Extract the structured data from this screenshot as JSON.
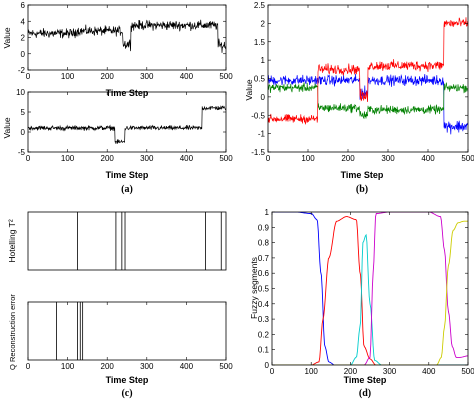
{
  "chart_data": [
    {
      "panel": "(a)",
      "type": "line",
      "xlabel": "Time Step",
      "ylabel": "Value",
      "xlim": [
        0,
        500
      ],
      "ylim": [
        -2,
        6
      ],
      "xticks": [
        0,
        100,
        200,
        300,
        400,
        500
      ],
      "yticks": [
        -2,
        0,
        2,
        4,
        6
      ],
      "grid": false,
      "series": [
        {
          "color": "#000000",
          "segments": [
            {
              "from": 0,
              "to": 120,
              "mean": 2.5,
              "noise": 0.5
            },
            {
              "from": 120,
              "to": 240,
              "mean": 2.8,
              "noise": 0.5
            },
            {
              "from": 240,
              "to": 260,
              "mean": 1.2,
              "noise": 0.6
            },
            {
              "from": 260,
              "to": 480,
              "mean": 3.5,
              "noise": 0.5
            },
            {
              "from": 480,
              "to": 500,
              "mean": 1.0,
              "noise": 0.6
            }
          ]
        }
      ]
    },
    {
      "panel": "(a)",
      "type": "line",
      "xlabel": "Time Step",
      "ylabel": "Value",
      "xlim": [
        0,
        500
      ],
      "ylim": [
        -5,
        10
      ],
      "xticks": [
        0,
        100,
        200,
        300,
        400,
        500
      ],
      "yticks": [
        -5,
        0,
        5,
        10
      ],
      "grid": false,
      "series": [
        {
          "color": "#000000",
          "segments": [
            {
              "from": 0,
              "to": 220,
              "mean": 1.0,
              "noise": 0.5
            },
            {
              "from": 220,
              "to": 245,
              "mean": -2.5,
              "noise": 0.5
            },
            {
              "from": 245,
              "to": 440,
              "mean": 1.0,
              "noise": 0.5
            },
            {
              "from": 440,
              "to": 500,
              "mean": 6.0,
              "noise": 0.5
            }
          ]
        }
      ]
    },
    {
      "panel": "(b)",
      "type": "line",
      "xlabel": "Time Step",
      "ylabel": "Value",
      "xlim": [
        0,
        500
      ],
      "ylim": [
        -1.5,
        2.5
      ],
      "xticks": [
        0,
        100,
        200,
        300,
        400,
        500
      ],
      "yticks": [
        -1.5,
        -1,
        -0.5,
        0,
        0.5,
        1,
        1.5,
        2,
        2.5
      ],
      "grid": false,
      "series": [
        {
          "color": "#0000ff",
          "segments": [
            {
              "from": 0,
              "to": 125,
              "mean": 0.45,
              "noise": 0.12
            },
            {
              "from": 125,
              "to": 230,
              "mean": 0.45,
              "noise": 0.12
            },
            {
              "from": 230,
              "to": 250,
              "mean": 0.1,
              "noise": 0.15
            },
            {
              "from": 250,
              "to": 440,
              "mean": 0.45,
              "noise": 0.12
            },
            {
              "from": 440,
              "to": 500,
              "mean": -0.8,
              "noise": 0.15
            }
          ]
        },
        {
          "color": "#008000",
          "segments": [
            {
              "from": 0,
              "to": 125,
              "mean": 0.25,
              "noise": 0.1
            },
            {
              "from": 125,
              "to": 230,
              "mean": -0.3,
              "noise": 0.1
            },
            {
              "from": 230,
              "to": 250,
              "mean": -0.5,
              "noise": 0.12
            },
            {
              "from": 250,
              "to": 440,
              "mean": -0.35,
              "noise": 0.1
            },
            {
              "from": 440,
              "to": 500,
              "mean": 0.25,
              "noise": 0.1
            }
          ]
        },
        {
          "color": "#ff0000",
          "segments": [
            {
              "from": 0,
              "to": 125,
              "mean": -0.6,
              "noise": 0.1
            },
            {
              "from": 125,
              "to": 230,
              "mean": 0.75,
              "noise": 0.12
            },
            {
              "from": 230,
              "to": 250,
              "mean": 0.0,
              "noise": 0.15
            },
            {
              "from": 250,
              "to": 440,
              "mean": 0.85,
              "noise": 0.12
            },
            {
              "from": 440,
              "to": 500,
              "mean": 2.0,
              "noise": 0.12
            }
          ]
        }
      ]
    },
    {
      "panel": "(c)",
      "type": "line",
      "xlabel": "",
      "ylabel": "Hotelling T²",
      "xlim": [
        0,
        500
      ],
      "ticks_visible": false,
      "event_lines": [
        125,
        222,
        237,
        245,
        448,
        488
      ]
    },
    {
      "panel": "(c)",
      "type": "line",
      "xlabel": "Time Step",
      "ylabel": "Q Reconstruction error",
      "xlim": [
        0,
        500
      ],
      "xticks": [
        0,
        100,
        200,
        300,
        400,
        500
      ],
      "event_lines": [
        72,
        125,
        132,
        138
      ]
    },
    {
      "panel": "(d)",
      "type": "line",
      "xlabel": "Time Step",
      "ylabel": "Fuzzy segments",
      "xlim": [
        0,
        500
      ],
      "ylim": [
        0,
        1
      ],
      "xticks": [
        0,
        100,
        200,
        300,
        400,
        500
      ],
      "yticks": [
        0,
        0.1,
        0.2,
        0.3,
        0.4,
        0.5,
        0.6,
        0.7,
        0.8,
        0.9,
        1
      ],
      "grid": false,
      "series": [
        {
          "color": "#0000ff",
          "x": [
            0,
            60,
            100,
            115,
            125,
            135,
            145,
            160,
            200,
            500
          ],
          "y": [
            1,
            1,
            0.99,
            0.95,
            0.6,
            0.12,
            0.02,
            0,
            0,
            0
          ]
        },
        {
          "color": "#ff0000",
          "x": [
            0,
            100,
            120,
            130,
            145,
            165,
            190,
            215,
            225,
            235,
            250,
            265,
            500
          ],
          "y": [
            0,
            0,
            0.02,
            0.3,
            0.7,
            0.94,
            0.97,
            0.95,
            0.6,
            0.12,
            0.04,
            0,
            0
          ]
        },
        {
          "color": "#00cccc",
          "x": [
            0,
            200,
            215,
            225,
            232,
            240,
            250,
            262,
            280,
            500
          ],
          "y": [
            0,
            0,
            0.05,
            0.25,
            0.8,
            0.85,
            0.4,
            0.03,
            0,
            0
          ]
        },
        {
          "color": "#cc00cc",
          "x": [
            0,
            235,
            250,
            258,
            265,
            300,
            400,
            430,
            440,
            450,
            460,
            470,
            480,
            500
          ],
          "y": [
            0,
            0,
            0.05,
            0.6,
            0.99,
            1,
            1,
            0.97,
            0.75,
            0.35,
            0.12,
            0.05,
            0.05,
            0.06
          ]
        },
        {
          "color": "#cccc00",
          "x": [
            0,
            420,
            432,
            440,
            450,
            462,
            475,
            490,
            500
          ],
          "y": [
            0,
            0,
            0.05,
            0.25,
            0.65,
            0.88,
            0.93,
            0.94,
            0.94
          ]
        }
      ]
    }
  ],
  "labels": {
    "panel_a": "(a)",
    "panel_b": "(b)",
    "panel_c": "(c)",
    "panel_d": "(d)",
    "xlabel": "Time Step",
    "value": "Value",
    "hotelling": "Hotelling T²",
    "q_error": "Q Reconstruction error",
    "fuzzy": "Fuzzy segments"
  }
}
